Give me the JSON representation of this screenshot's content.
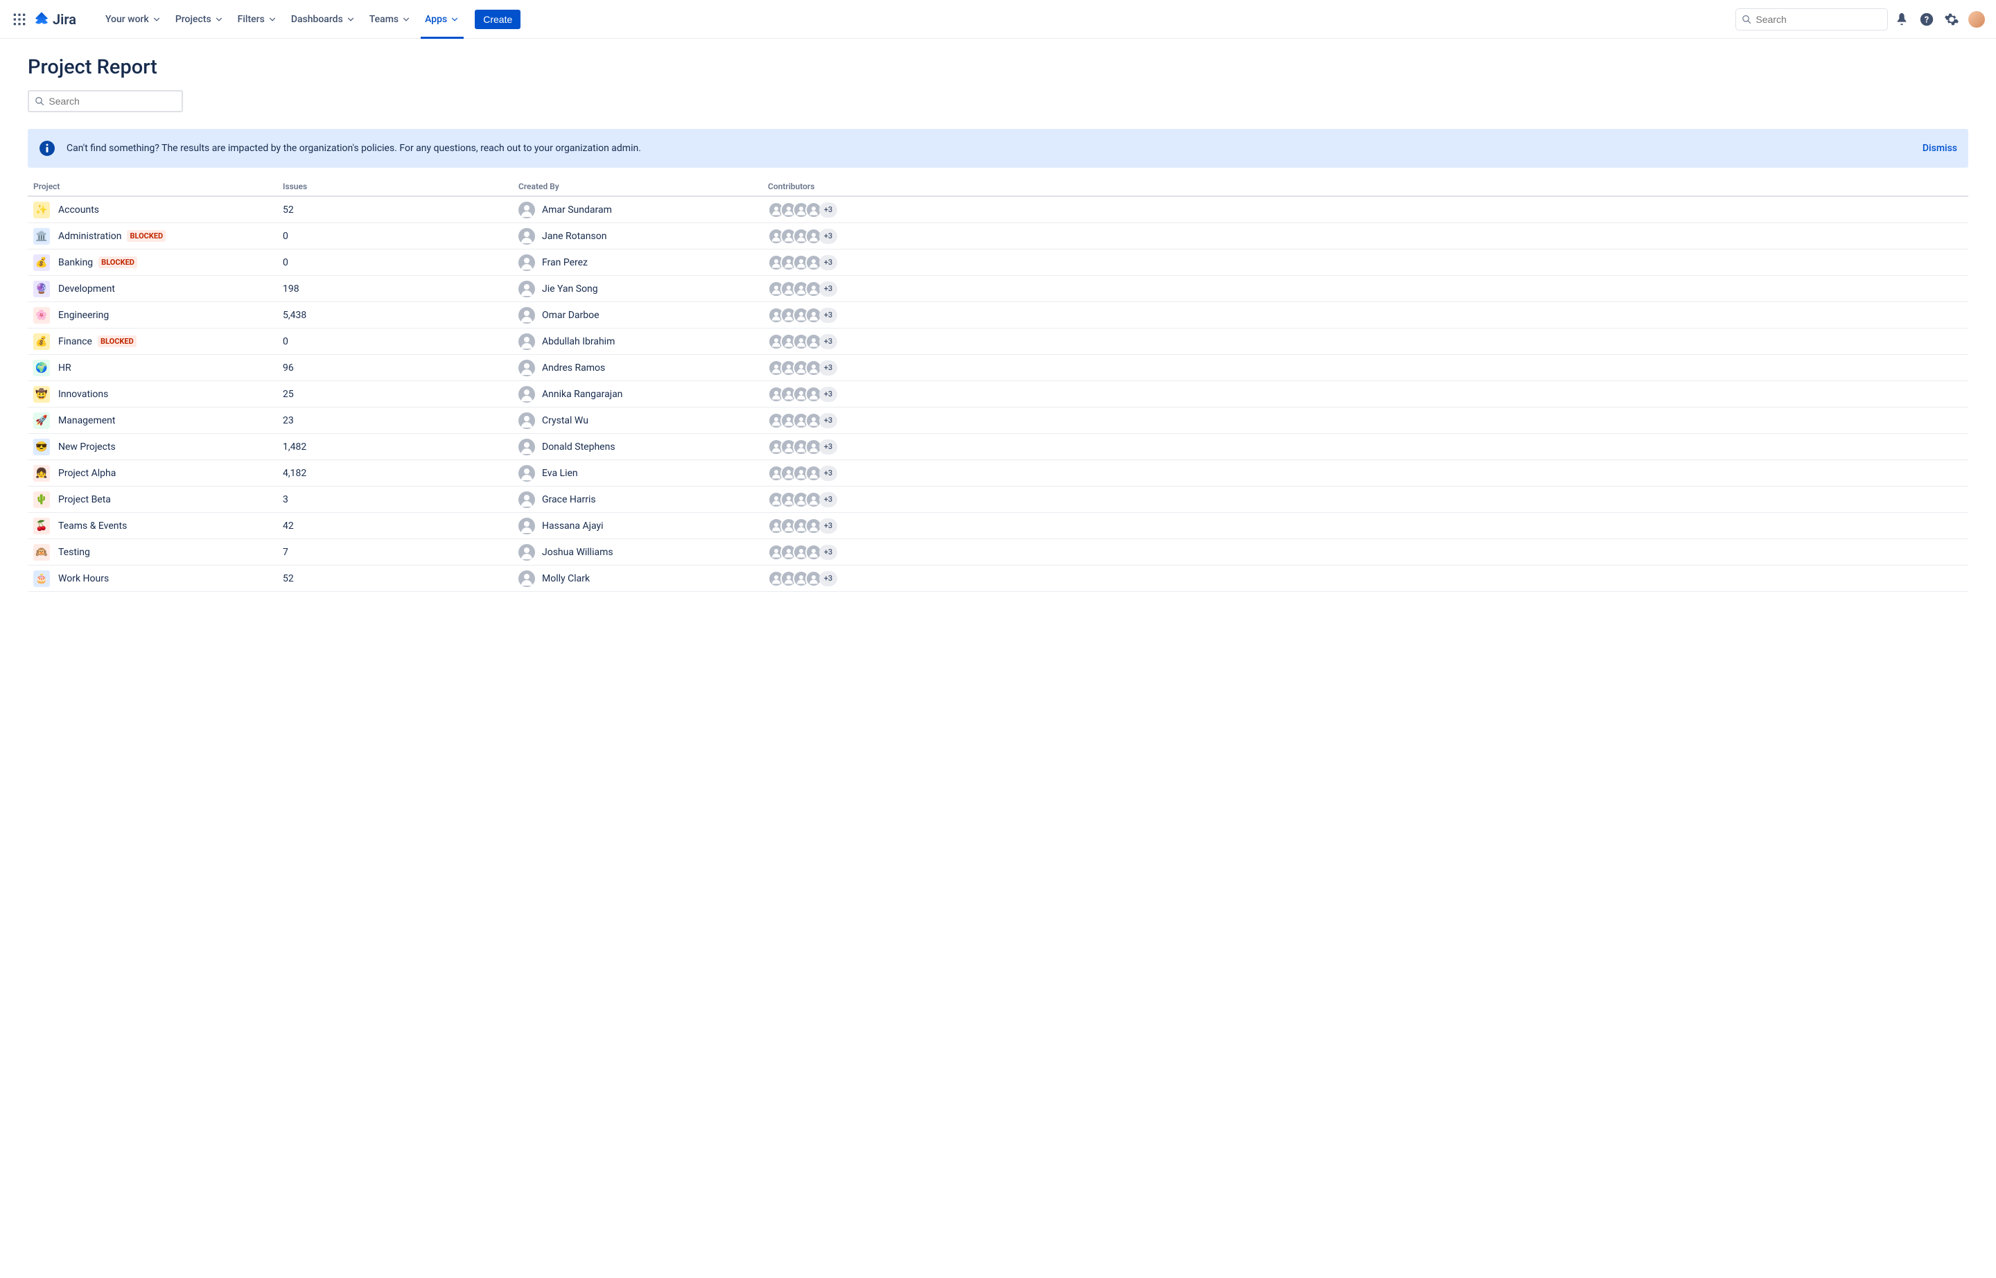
{
  "product": "Jira",
  "nav": {
    "items": [
      {
        "label": "Your work"
      },
      {
        "label": "Projects"
      },
      {
        "label": "Filters"
      },
      {
        "label": "Dashboards"
      },
      {
        "label": "Teams"
      },
      {
        "label": "Apps",
        "active": true
      }
    ],
    "create": "Create",
    "search_placeholder": "Search"
  },
  "page": {
    "title": "Project Report",
    "filter_placeholder": "Search",
    "banner": {
      "text": "Can't find something? The results are impacted by the organization's policies. For any questions, reach out to your organization admin.",
      "dismiss": "Dismiss"
    },
    "columns": {
      "project": "Project",
      "issues": "Issues",
      "created_by": "Created By",
      "contributors": "Contributors"
    },
    "rows": [
      {
        "icon": "✨",
        "icon_bg": "#FFF0B3",
        "name": "Accounts",
        "blocked": false,
        "issues": "52",
        "created_by": "Amar Sundaram",
        "more": "+3"
      },
      {
        "icon": "🏛️",
        "icon_bg": "#DEEBFF",
        "name": "Administration",
        "blocked": true,
        "issues": "0",
        "created_by": "Jane Rotanson",
        "more": "+3"
      },
      {
        "icon": "💰",
        "icon_bg": "#EAE6FF",
        "name": "Banking",
        "blocked": true,
        "issues": "0",
        "created_by": "Fran Perez",
        "more": "+3"
      },
      {
        "icon": "🔮",
        "icon_bg": "#EAE6FF",
        "name": "Development",
        "blocked": false,
        "issues": "198",
        "created_by": "Jie Yan Song",
        "more": "+3"
      },
      {
        "icon": "🌸",
        "icon_bg": "#FFEBE6",
        "name": "Engineering",
        "blocked": false,
        "issues": "5,438",
        "created_by": "Omar Darboe",
        "more": "+3"
      },
      {
        "icon": "💰",
        "icon_bg": "#FFF0B3",
        "name": "Finance",
        "blocked": true,
        "issues": "0",
        "created_by": "Abdullah Ibrahim",
        "more": "+3"
      },
      {
        "icon": "🌍",
        "icon_bg": "#E3FCEF",
        "name": "HR",
        "blocked": false,
        "issues": "96",
        "created_by": "Andres Ramos",
        "more": "+3"
      },
      {
        "icon": "🤠",
        "icon_bg": "#FFF0B3",
        "name": "Innovations",
        "blocked": false,
        "issues": "25",
        "created_by": "Annika Rangarajan",
        "more": "+3"
      },
      {
        "icon": "🚀",
        "icon_bg": "#E3FCEF",
        "name": "Management",
        "blocked": false,
        "issues": "23",
        "created_by": "Crystal Wu",
        "more": "+3"
      },
      {
        "icon": "😎",
        "icon_bg": "#DEEBFF",
        "name": "New Projects",
        "blocked": false,
        "issues": "1,482",
        "created_by": "Donald Stephens",
        "more": "+3"
      },
      {
        "icon": "👧",
        "icon_bg": "#FFEBE6",
        "name": "Project Alpha",
        "blocked": false,
        "issues": "4,182",
        "created_by": "Eva Lien",
        "more": "+3"
      },
      {
        "icon": "🌵",
        "icon_bg": "#FFEBE6",
        "name": "Project Beta",
        "blocked": false,
        "issues": "3",
        "created_by": "Grace Harris",
        "more": "+3"
      },
      {
        "icon": "🍒",
        "icon_bg": "#FFEBE6",
        "name": "Teams & Events",
        "blocked": false,
        "issues": "42",
        "created_by": "Hassana Ajayi",
        "more": "+3"
      },
      {
        "icon": "🙉",
        "icon_bg": "#FFEBE6",
        "name": "Testing",
        "blocked": false,
        "issues": "7",
        "created_by": "Joshua Williams",
        "more": "+3"
      },
      {
        "icon": "🎂",
        "icon_bg": "#DEEBFF",
        "name": "Work Hours",
        "blocked": false,
        "issues": "52",
        "created_by": "Molly Clark",
        "more": "+3"
      }
    ],
    "blocked_label": "BLOCKED"
  }
}
